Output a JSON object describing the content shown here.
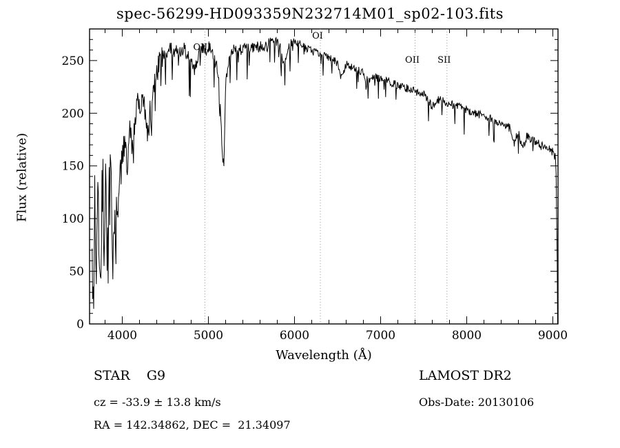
{
  "title": "spec-56299-HD093359N232714M01_sp02-103.fits",
  "footer": {
    "class_label": "STAR    G9",
    "survey": "LAMOST DR2",
    "cz": "cz = -33.9 ± 13.8 km/s",
    "obs_date": "Obs-Date: 20130106",
    "coords": "RA = 142.34862, DEC =  21.34097"
  },
  "chart_data": {
    "type": "line",
    "title": "spec-56299-HD093359N232714M01_sp02-103.fits",
    "xlabel": "Wavelength (Å)",
    "ylabel": "Flux (relative)",
    "xlim": [
      3620,
      9060
    ],
    "ylim": [
      0,
      280
    ],
    "xticks": [
      4000,
      5000,
      6000,
      7000,
      8000,
      9000
    ],
    "yticks": [
      0,
      50,
      100,
      150,
      200,
      250
    ],
    "x_minor_step": 200,
    "y_minor_step": 10,
    "grid": false,
    "legend": "none",
    "line_color": "#000000",
    "marker_line_color": "#999999",
    "annotations": [
      {
        "label": "OIII",
        "wavelength": 4959,
        "label_flux": 260
      },
      {
        "label": "OI",
        "wavelength": 6300,
        "label_flux": 271
      },
      {
        "label": "OII",
        "wavelength": 7400,
        "label_flux": 248
      },
      {
        "label": "SII",
        "wavelength": 7770,
        "label_flux": 248
      }
    ],
    "series": [
      {
        "name": "spectrum",
        "anchors": [
          [
            3650,
            60
          ],
          [
            3665,
            20
          ],
          [
            3680,
            120
          ],
          [
            3700,
            45
          ],
          [
            3715,
            135
          ],
          [
            3730,
            60
          ],
          [
            3745,
            25
          ],
          [
            3760,
            115
          ],
          [
            3775,
            145
          ],
          [
            3790,
            70
          ],
          [
            3805,
            150
          ],
          [
            3820,
            85
          ],
          [
            3835,
            55
          ],
          [
            3850,
            135
          ],
          [
            3865,
            160
          ],
          [
            3880,
            90
          ],
          [
            3895,
            55
          ],
          [
            3910,
            120
          ],
          [
            3925,
            70
          ],
          [
            3940,
            145
          ],
          [
            3955,
            100
          ],
          [
            3970,
            160
          ],
          [
            3985,
            170
          ],
          [
            4000,
            155
          ],
          [
            4030,
            175
          ],
          [
            4060,
            150
          ],
          [
            4090,
            185
          ],
          [
            4120,
            170
          ],
          [
            4150,
            195
          ],
          [
            4180,
            210
          ],
          [
            4210,
            200
          ],
          [
            4240,
            215
          ],
          [
            4270,
            195
          ],
          [
            4300,
            182
          ],
          [
            4330,
            208
          ],
          [
            4360,
            225
          ],
          [
            4400,
            238
          ],
          [
            4440,
            248
          ],
          [
            4480,
            252
          ],
          [
            4520,
            258
          ],
          [
            4560,
            263
          ],
          [
            4600,
            256
          ],
          [
            4640,
            261
          ],
          [
            4680,
            258
          ],
          [
            4720,
            262
          ],
          [
            4760,
            257
          ],
          [
            4800,
            250
          ],
          [
            4840,
            240
          ],
          [
            4870,
            252
          ],
          [
            4900,
            260
          ],
          [
            4930,
            262
          ],
          [
            4960,
            258
          ],
          [
            5000,
            263
          ],
          [
            5040,
            258
          ],
          [
            5080,
            248
          ],
          [
            5120,
            238
          ],
          [
            5160,
            165
          ],
          [
            5180,
            150
          ],
          [
            5200,
            225
          ],
          [
            5230,
            250
          ],
          [
            5260,
            257
          ],
          [
            5300,
            260
          ],
          [
            5350,
            258
          ],
          [
            5400,
            262
          ],
          [
            5450,
            260
          ],
          [
            5500,
            263
          ],
          [
            5550,
            261
          ],
          [
            5600,
            264
          ],
          [
            5650,
            262
          ],
          [
            5700,
            265
          ],
          [
            5750,
            267
          ],
          [
            5800,
            268
          ],
          [
            5840,
            262
          ],
          [
            5880,
            245
          ],
          [
            5920,
            260
          ],
          [
            5960,
            266
          ],
          [
            6000,
            268
          ],
          [
            6050,
            266
          ],
          [
            6100,
            263
          ],
          [
            6150,
            261
          ],
          [
            6200,
            259
          ],
          [
            6250,
            257
          ],
          [
            6300,
            255
          ],
          [
            6350,
            254
          ],
          [
            6400,
            252
          ],
          [
            6450,
            250
          ],
          [
            6500,
            248
          ],
          [
            6550,
            232
          ],
          [
            6600,
            246
          ],
          [
            6650,
            244
          ],
          [
            6700,
            242
          ],
          [
            6750,
            240
          ],
          [
            6800,
            238
          ],
          [
            6850,
            230
          ],
          [
            6900,
            236
          ],
          [
            6950,
            234
          ],
          [
            7000,
            233
          ],
          [
            7100,
            230
          ],
          [
            7200,
            227
          ],
          [
            7300,
            224
          ],
          [
            7400,
            221
          ],
          [
            7500,
            218
          ],
          [
            7600,
            206
          ],
          [
            7650,
            212
          ],
          [
            7700,
            213
          ],
          [
            7800,
            209
          ],
          [
            7900,
            206
          ],
          [
            8000,
            203
          ],
          [
            8100,
            200
          ],
          [
            8200,
            197
          ],
          [
            8300,
            194
          ],
          [
            8400,
            190
          ],
          [
            8500,
            186
          ],
          [
            8550,
            172
          ],
          [
            8600,
            182
          ],
          [
            8650,
            166
          ],
          [
            8700,
            179
          ],
          [
            8750,
            175
          ],
          [
            8800,
            172
          ],
          [
            8900,
            169
          ],
          [
            8960,
            166
          ],
          [
            9000,
            163
          ],
          [
            9030,
            158
          ],
          [
            9045,
            120
          ],
          [
            9055,
            0
          ]
        ]
      }
    ],
    "noise": {
      "seed": 20130106,
      "step": 6,
      "regions": [
        {
          "from": 3620,
          "to": 4000,
          "amp": 28,
          "spike_prob": 0.18,
          "spike_depth": 55
        },
        {
          "from": 4000,
          "to": 4500,
          "amp": 13,
          "spike_prob": 0.1,
          "spike_depth": 38
        },
        {
          "from": 4500,
          "to": 6000,
          "amp": 6,
          "spike_prob": 0.09,
          "spike_depth": 34
        },
        {
          "from": 6000,
          "to": 7000,
          "amp": 4,
          "spike_prob": 0.06,
          "spike_depth": 18
        },
        {
          "from": 7000,
          "to": 9060,
          "amp": 4,
          "spike_prob": 0.06,
          "spike_depth": 22
        }
      ]
    }
  }
}
